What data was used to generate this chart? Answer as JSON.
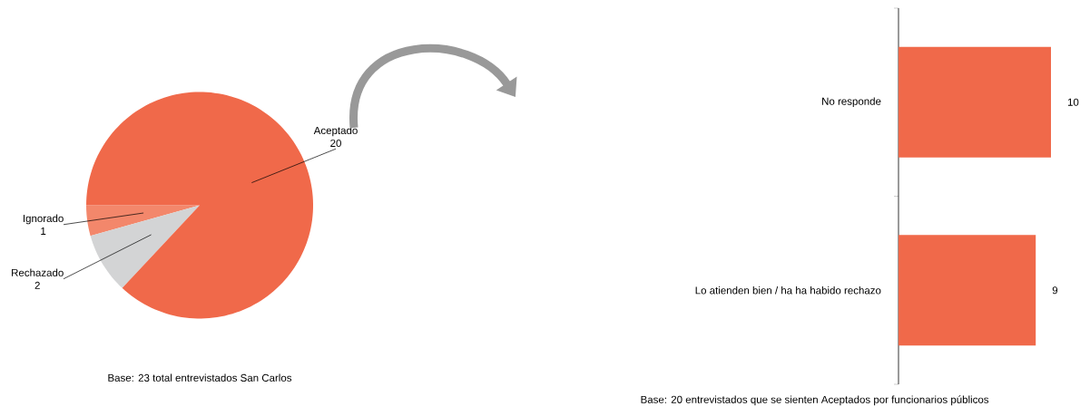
{
  "chart_data": [
    {
      "type": "pie",
      "categories": [
        "Ignorado",
        "Rechazado",
        "Aceptado"
      ],
      "values": [
        1,
        2,
        20
      ],
      "colors": [
        "#f3876b",
        "#d3d4d5",
        "#f0694a"
      ],
      "data_labels": true,
      "annotations": [
        "Base: 23 total entrevistados San Carlos"
      ]
    },
    {
      "type": "bar",
      "orientation": "horizontal",
      "categories": [
        "No responde",
        "Lo atienden bien / ha ha habido rechazo"
      ],
      "values": [
        10,
        9
      ],
      "color": "#f0694a",
      "data_labels": true,
      "annotations": [
        "Base: 20 entrevistados que se sienten Aceptados por funcionarios públicos"
      ]
    }
  ]
}
